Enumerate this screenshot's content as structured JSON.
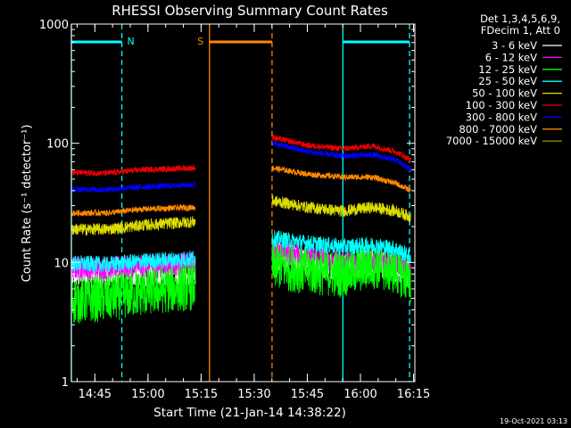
{
  "chart_data": {
    "type": "line",
    "title": "RHESSI Observing Summary Count Rates",
    "xlabel": "Start Time (21-Jan-14 14:38:22)",
    "ylabel": "Count Rate (s⁻¹ detector⁻¹)",
    "xlim": [
      0,
      5820
    ],
    "ylim": [
      1,
      1000
    ],
    "yscale": "log",
    "x_ticks": [
      {
        "label": "14:45",
        "t": 398
      },
      {
        "label": "15:00",
        "t": 1298
      },
      {
        "label": "15:15",
        "t": 2198
      },
      {
        "label": "15:30",
        "t": 3098
      },
      {
        "label": "15:45",
        "t": 3998
      },
      {
        "label": "16:00",
        "t": 4898
      },
      {
        "label": "16:15",
        "t": 5798
      }
    ],
    "y_ticks": [
      {
        "label": "1",
        "v": 1
      },
      {
        "label": "10",
        "v": 10
      },
      {
        "label": "100",
        "v": 100
      },
      {
        "label": "1000",
        "v": 1000
      }
    ],
    "legend_header": [
      "Det 1,3,4,5,6,9,",
      "FDecim 1, Att 0"
    ],
    "series": [
      {
        "name": "3 - 6 keV",
        "color": "#ffffff",
        "seg1": [
          [
            0,
            8
          ],
          [
            600,
            8
          ],
          [
            1200,
            8.3
          ],
          [
            2100,
            8.5
          ]
        ],
        "seg2": [
          [
            3400,
            11.5
          ],
          [
            4000,
            10
          ],
          [
            4600,
            9.3
          ],
          [
            5100,
            9.8
          ],
          [
            5500,
            9
          ],
          [
            5750,
            7.5
          ]
        ],
        "noise": 0.12
      },
      {
        "name": "6 - 12 keV",
        "color": "#ff00ff",
        "seg1": [
          [
            0,
            9
          ],
          [
            600,
            9
          ],
          [
            1200,
            9.3
          ],
          [
            2100,
            9.8
          ]
        ],
        "seg2": [
          [
            3400,
            12.5
          ],
          [
            4000,
            11.5
          ],
          [
            4600,
            10
          ],
          [
            5100,
            10.5
          ],
          [
            5500,
            10
          ],
          [
            5750,
            8.5
          ]
        ],
        "noise": 0.1
      },
      {
        "name": "12 - 25 keV",
        "color": "#00ff00",
        "seg1": [
          [
            0,
            4.8
          ],
          [
            600,
            5
          ],
          [
            1200,
            5.6
          ],
          [
            2100,
            6.3
          ]
        ],
        "seg2": [
          [
            3400,
            9.5
          ],
          [
            4000,
            8.5
          ],
          [
            4600,
            8
          ],
          [
            5100,
            9.5
          ],
          [
            5500,
            8.5
          ],
          [
            5750,
            7
          ]
        ],
        "noise": 0.2
      },
      {
        "name": "25 - 50 keV",
        "color": "#00ffff",
        "seg1": [
          [
            0,
            9.8
          ],
          [
            600,
            9.6
          ],
          [
            1200,
            10.2
          ],
          [
            2100,
            10.8
          ]
        ],
        "seg2": [
          [
            3400,
            16
          ],
          [
            4000,
            14.5
          ],
          [
            4600,
            13.5
          ],
          [
            5100,
            14
          ],
          [
            5500,
            13
          ],
          [
            5750,
            11
          ]
        ],
        "noise": 0.07
      },
      {
        "name": "50 - 100 keV",
        "color": "#dddd00",
        "seg1": [
          [
            0,
            19
          ],
          [
            600,
            19
          ],
          [
            1200,
            20.5
          ],
          [
            2100,
            22
          ]
        ],
        "seg2": [
          [
            3400,
            33
          ],
          [
            4000,
            29
          ],
          [
            4600,
            27
          ],
          [
            5100,
            29
          ],
          [
            5500,
            27
          ],
          [
            5750,
            24
          ]
        ],
        "noise": 0.05
      },
      {
        "name": "100 - 300 keV",
        "color": "#ee0000",
        "seg1": [
          [
            0,
            57
          ],
          [
            600,
            56
          ],
          [
            1200,
            60
          ],
          [
            2100,
            62
          ]
        ],
        "seg2": [
          [
            3400,
            112
          ],
          [
            4000,
            96
          ],
          [
            4600,
            90
          ],
          [
            5100,
            95
          ],
          [
            5500,
            85
          ],
          [
            5750,
            72
          ]
        ],
        "noise": 0.025
      },
      {
        "name": "300 - 800 keV",
        "color": "#0000ff",
        "seg1": [
          [
            0,
            41
          ],
          [
            600,
            41
          ],
          [
            1200,
            43
          ],
          [
            2100,
            45
          ]
        ],
        "seg2": [
          [
            3400,
            100
          ],
          [
            4000,
            85
          ],
          [
            4600,
            78
          ],
          [
            5100,
            80
          ],
          [
            5500,
            72
          ],
          [
            5750,
            60
          ]
        ],
        "noise": 0.025
      },
      {
        "name": "800 - 7000 keV",
        "color": "#ff8800",
        "seg1": [
          [
            0,
            26
          ],
          [
            600,
            26
          ],
          [
            1200,
            28
          ],
          [
            2100,
            29
          ]
        ],
        "seg2": [
          [
            3400,
            62
          ],
          [
            4000,
            55
          ],
          [
            4600,
            52
          ],
          [
            5100,
            52
          ],
          [
            5500,
            46
          ],
          [
            5750,
            40
          ]
        ],
        "noise": 0.025
      },
      {
        "name": "7000 - 15000 keV",
        "color": "#888800",
        "seg1": [],
        "seg2": [],
        "noise": 0
      }
    ],
    "annotations": {
      "night": {
        "label": "N",
        "color": "#00ffff",
        "intervals": [
          [
            0,
            855
          ],
          [
            4600,
            5730
          ]
        ]
      },
      "saa": {
        "label": "S",
        "color": "#ff8800",
        "intervals": [
          [
            2340,
            3400
          ]
        ]
      }
    }
  },
  "timestamp": "19-Oct-2021 03:13"
}
